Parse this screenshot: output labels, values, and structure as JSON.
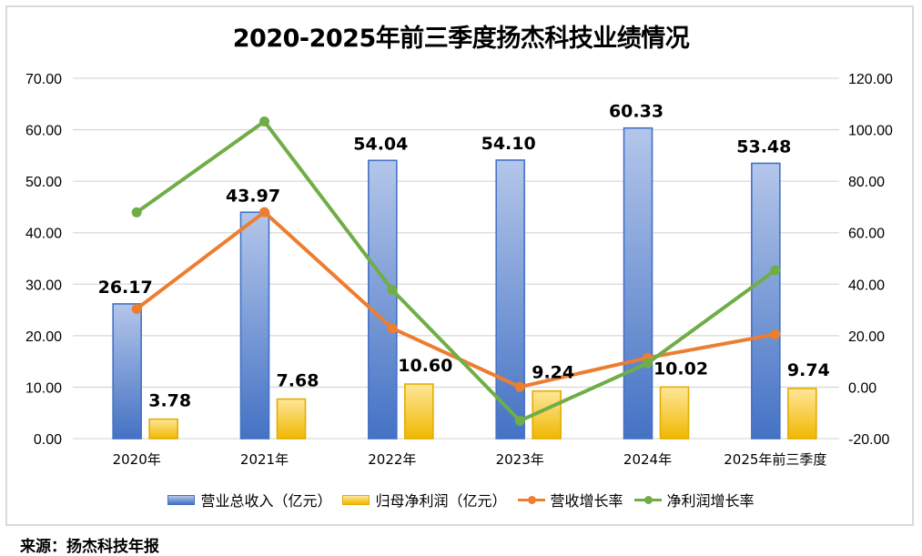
{
  "title": "2020-2025年前三季度扬杰科技业绩情况",
  "source": "来源：扬杰科技年报",
  "colors": {
    "revenue_top": "#b4c6ea",
    "revenue_bottom": "#4472c4",
    "revenue_border": "#4472c4",
    "profit_top": "#ffe699",
    "profit_bottom": "#f0b800",
    "profit_border": "#e6ac00",
    "revenue_growth": "#ed7d31",
    "profit_growth": "#70ad47",
    "grid": "#d9d9d9"
  },
  "legend": [
    {
      "label": "营业总收入（亿元）",
      "kind": "bar",
      "series": "revenue"
    },
    {
      "label": "归母净利润（亿元）",
      "kind": "bar",
      "series": "profit"
    },
    {
      "label": "营收增长率",
      "kind": "line",
      "series": "revenue_growth"
    },
    {
      "label": "净利润增长率",
      "kind": "line",
      "series": "profit_growth"
    }
  ],
  "chart_data": {
    "type": "bar",
    "title": "2020-2025年前三季度扬杰科技业绩情况",
    "categories": [
      "2020年",
      "2021年",
      "2022年",
      "2023年",
      "2024年",
      "2025年前三季度"
    ],
    "left_axis": {
      "ylim": [
        0,
        70
      ],
      "ticks": [
        "0.00",
        "10.00",
        "20.00",
        "30.00",
        "40.00",
        "50.00",
        "60.00",
        "70.00"
      ]
    },
    "right_axis": {
      "ylim": [
        -20,
        120
      ],
      "ticks": [
        "-20.00",
        "0.00",
        "20.00",
        "40.00",
        "60.00",
        "80.00",
        "100.00",
        "120.00"
      ]
    },
    "grid": true,
    "legend_position": "bottom",
    "series": [
      {
        "name": "营业总收入（亿元）",
        "key": "revenue",
        "type": "bar",
        "axis": "left",
        "values": [
          26.17,
          43.97,
          54.04,
          54.1,
          60.33,
          53.48
        ],
        "labels": [
          "26.17",
          "43.97",
          "54.04",
          "54.10",
          "60.33",
          "53.48"
        ]
      },
      {
        "name": "归母净利润（亿元）",
        "key": "profit",
        "type": "bar",
        "axis": "left",
        "values": [
          3.78,
          7.68,
          10.6,
          9.24,
          10.02,
          9.74
        ],
        "labels": [
          "3.78",
          "7.68",
          "10.60",
          "9.24",
          "10.02",
          "9.74"
        ]
      },
      {
        "name": "营收增长率",
        "key": "revenue_growth",
        "type": "line",
        "axis": "right",
        "values": [
          30.4,
          68.0,
          22.9,
          0.1,
          11.4,
          20.5
        ]
      },
      {
        "name": "净利润增长率",
        "key": "profit_growth",
        "type": "line",
        "axis": "right",
        "values": [
          67.9,
          103.2,
          37.8,
          -13.1,
          9.3,
          45.4
        ]
      }
    ]
  }
}
